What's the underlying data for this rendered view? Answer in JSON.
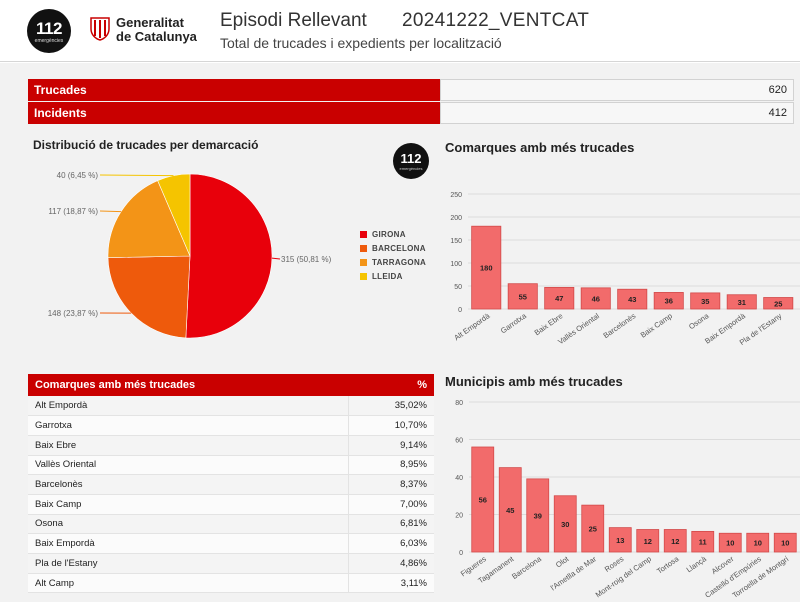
{
  "header": {
    "logo_112_main": "112",
    "logo_112_sub": "emergències",
    "generalitat_line1": "Generalitat",
    "generalitat_line2": "de Catalunya",
    "title": "Episodi Rellevant",
    "code": "20241222_VENTCAT",
    "subtitle": "Total de trucades i expedients per localització"
  },
  "kpis": [
    {
      "label": "Trucades",
      "value": "620"
    },
    {
      "label": "Incidents",
      "value": "412"
    }
  ],
  "badge": {
    "main": "112",
    "sub": "emergències"
  },
  "colors": {
    "brand_red": "#c90000",
    "bar_fill": "#f26b6b",
    "bar_stroke": "#d24a4a"
  },
  "chart_data": [
    {
      "type": "pie",
      "title": "Distribució de trucades per demarcació",
      "slices": [
        {
          "name": "GIRONA",
          "value": 315,
          "label": "315 (50,81 %)",
          "color": "#e8000b"
        },
        {
          "name": "BARCELONA",
          "value": 148,
          "label": "148 (23,87 %)",
          "color": "#ee5a0c"
        },
        {
          "name": "TARRAGONA",
          "value": 117,
          "label": "117 (18,87 %)",
          "color": "#f39417"
        },
        {
          "name": "LLEIDA",
          "value": 40,
          "label": "40 (6,45 %)",
          "color": "#f5c400"
        }
      ],
      "legend_position": "right"
    },
    {
      "type": "bar",
      "title": "Comarques amb més trucades",
      "categories": [
        "Alt Empordà",
        "Garrotxa",
        "Baix Ebre",
        "Vallès Oriental",
        "Barcelonès",
        "Baix Camp",
        "Osona",
        "Baix Empordà",
        "Pla de l'Estany"
      ],
      "values": [
        180,
        55,
        47,
        46,
        43,
        36,
        35,
        31,
        25
      ],
      "yticks": [
        "0",
        "50",
        "100",
        "150",
        "200",
        "250"
      ],
      "ylim": [
        0,
        250
      ],
      "grid": true
    },
    {
      "type": "bar",
      "title": "Municipis amb més trucades",
      "categories": [
        "Figueres",
        "Tagamanent",
        "Barcelona",
        "Olot",
        "l'Ametlla de Mar",
        "Roses",
        "Mont-roig del Camp",
        "Tortosa",
        "Llançà",
        "Alcover",
        "Castelló d'Empúries",
        "Torroella de Montgrí"
      ],
      "values": [
        56,
        45,
        39,
        30,
        25,
        13,
        12,
        12,
        11,
        10,
        10,
        10
      ],
      "yticks": [
        "0",
        "20",
        "40",
        "60",
        "80"
      ],
      "ylim": [
        0,
        80
      ],
      "grid": true
    },
    {
      "type": "table",
      "columns": [
        "Comarques amb més trucades",
        "%"
      ],
      "rows": [
        [
          "Alt Empordà",
          "35,02%"
        ],
        [
          "Garrotxa",
          "10,70%"
        ],
        [
          "Baix Ebre",
          "9,14%"
        ],
        [
          "Vallès Oriental",
          "8,95%"
        ],
        [
          "Barcelonès",
          "8,37%"
        ],
        [
          "Baix Camp",
          "7,00%"
        ],
        [
          "Osona",
          "6,81%"
        ],
        [
          "Baix Empordà",
          "6,03%"
        ],
        [
          "Pla de l'Estany",
          "4,86%"
        ],
        [
          "Alt Camp",
          "3,11%"
        ]
      ]
    }
  ]
}
